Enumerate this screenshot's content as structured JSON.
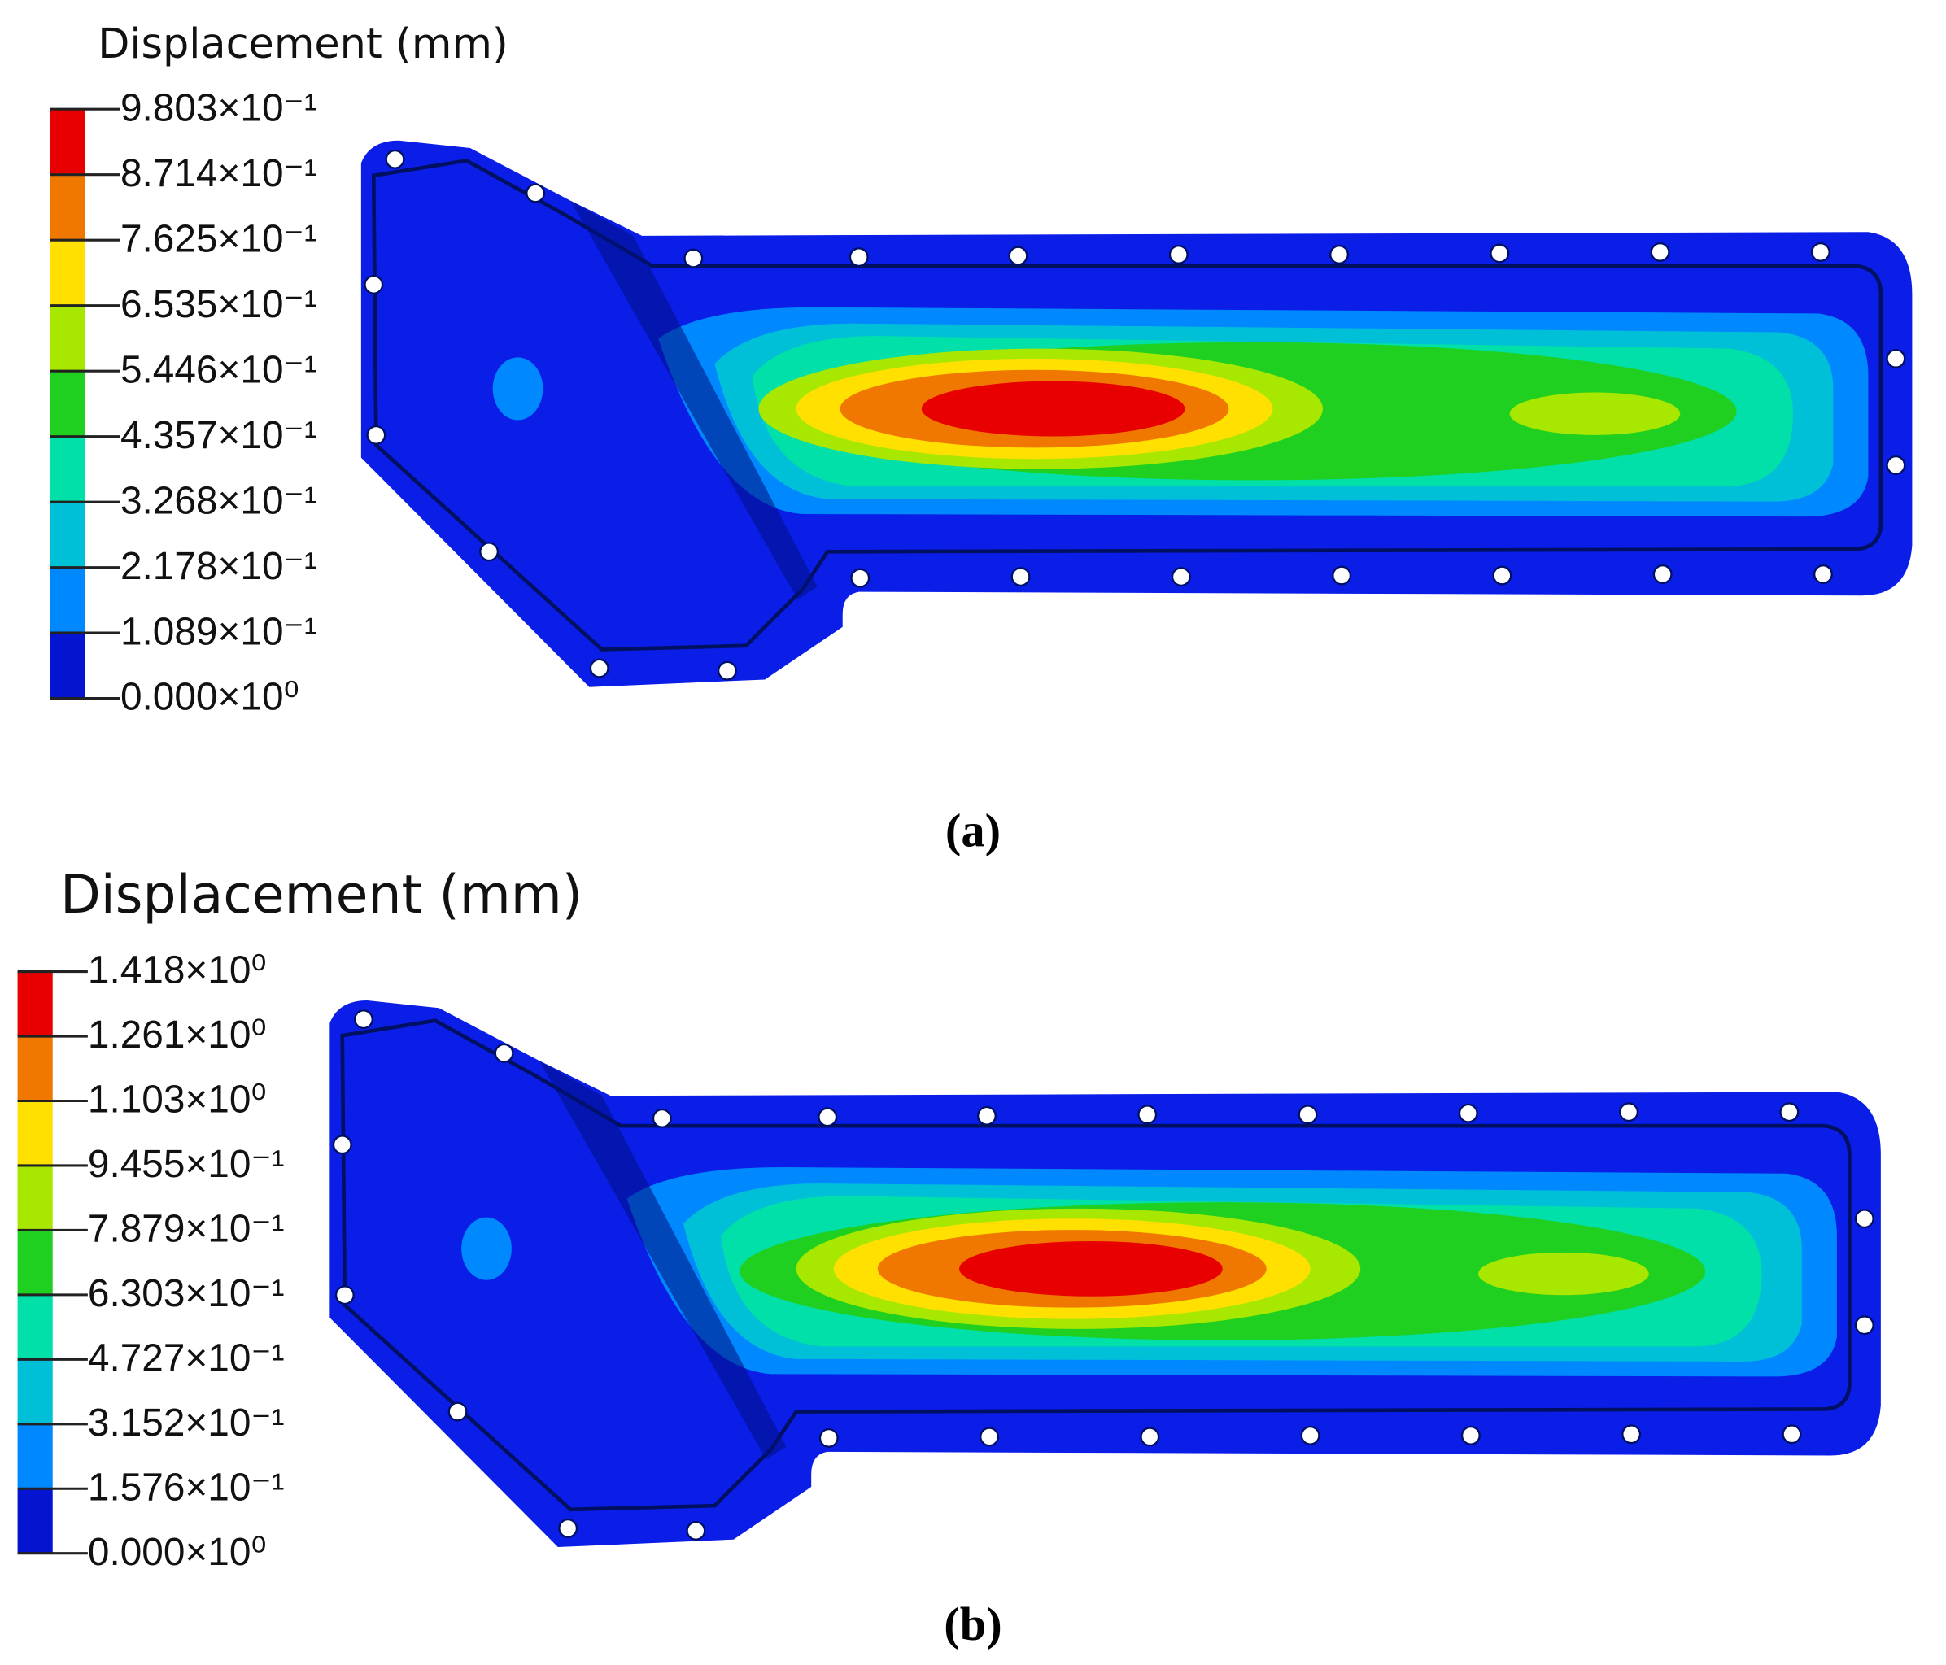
{
  "panels": [
    {
      "title": "Displacement (mm)",
      "legend_labels": [
        "9.803×10⁻¹",
        "8.714×10⁻¹",
        "7.625×10⁻¹",
        "6.535×10⁻¹",
        "5.446×10⁻¹",
        "4.357×10⁻¹",
        "3.268×10⁻¹",
        "2.178×10⁻¹",
        "1.089×10⁻¹",
        "0.000×10⁰"
      ],
      "caption": "(a)"
    },
    {
      "title": "Displacement (mm)",
      "legend_labels": [
        "1.418×10⁰",
        "1.261×10⁰",
        "1.103×10⁰",
        "9.455×10⁻¹",
        "7.879×10⁻¹",
        "6.303×10⁻¹",
        "4.727×10⁻¹",
        "3.152×10⁻¹",
        "1.576×10⁻¹",
        "0.000×10⁰"
      ],
      "caption": "(b)"
    }
  ]
}
